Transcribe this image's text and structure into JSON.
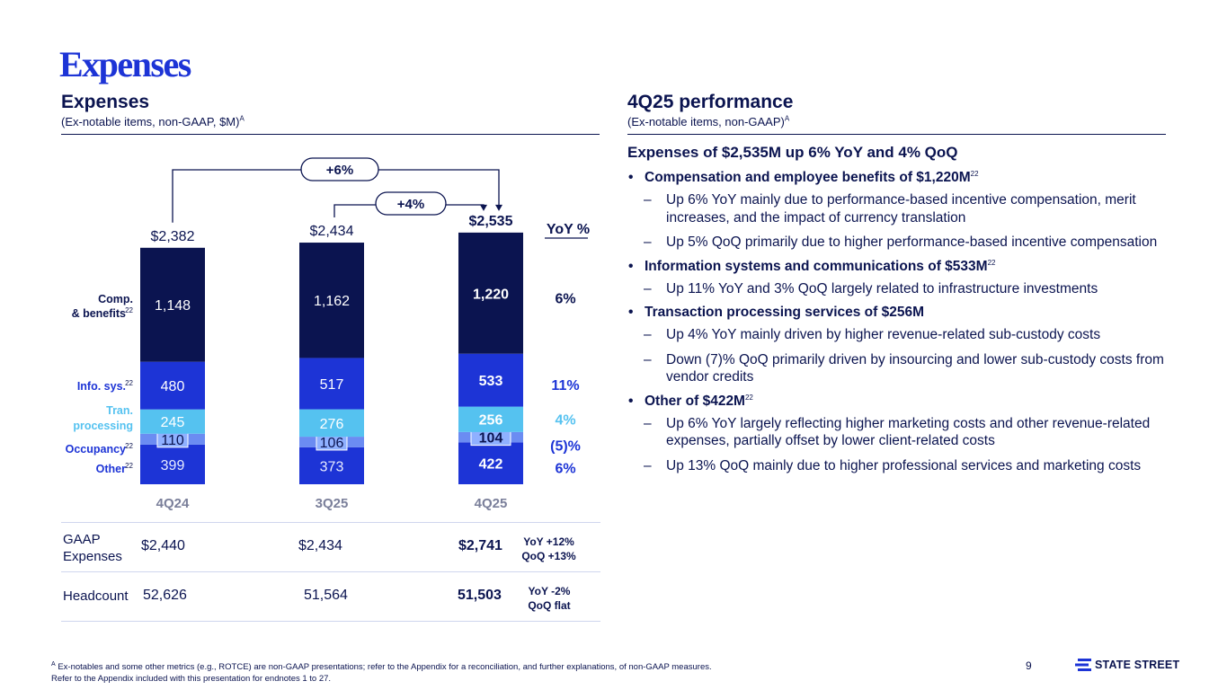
{
  "page": {
    "title": "Expenses",
    "page_number": "9"
  },
  "left_section": {
    "title": "Expenses",
    "subtitle": "(Ex-notable items, non-GAAP, $M)",
    "subtitle_sup": "A"
  },
  "right_section": {
    "title": "4Q25 performance",
    "subtitle": "(Ex-notable items, non-GAAP)",
    "subtitle_sup": "A"
  },
  "chart_data": {
    "type": "bar",
    "stacked": true,
    "categories": [
      "4Q24",
      "3Q25",
      "4Q25"
    ],
    "series": [
      {
        "name": "Other",
        "sup": "22",
        "values": [
          399,
          373,
          422
        ],
        "color": "#1d34d6"
      },
      {
        "name": "Occupancy",
        "sup": "22",
        "values": [
          110,
          106,
          104
        ],
        "color": "#6b8cf2"
      },
      {
        "name": "Tran. processing",
        "sup": "",
        "values": [
          245,
          276,
          256
        ],
        "color": "#55c2f0"
      },
      {
        "name": "Info. sys.",
        "sup": "22",
        "values": [
          480,
          517,
          533
        ],
        "color": "#1d34d6"
      },
      {
        "name": "Comp. & benefits",
        "sup": "22",
        "values": [
          1148,
          1162,
          1220
        ],
        "color": "#0b1450"
      }
    ],
    "totals": [
      "$2,382",
      "$2,434",
      "$2,535"
    ],
    "yoy_header": "YoY %",
    "yoy_changes": [
      "6%",
      "(5)%",
      "4%",
      "11%",
      "6%"
    ],
    "comparisons": [
      {
        "label": "+6%",
        "from": "4Q24",
        "to": "4Q25"
      },
      {
        "label": "+4%",
        "from": "3Q25",
        "to": "4Q25"
      }
    ],
    "legend_labels": {
      "comp_line1": "Comp.",
      "comp_line2": "& benefits",
      "comp_sup": "22",
      "info": "Info. sys.",
      "info_sup": "22",
      "tran_line1": "Tran.",
      "tran_line2": "processing",
      "occupancy": "Occupancy",
      "occupancy_sup": "22",
      "other": "Other",
      "other_sup": "22"
    },
    "ylim": [
      0,
      2600
    ]
  },
  "table": {
    "rows": [
      {
        "label_line1": "GAAP",
        "label_line2": "Expenses",
        "values": [
          "$2,440",
          "$2,434",
          "$2,741"
        ],
        "note_line1": "YoY +12%",
        "note_line2": "QoQ +13%"
      },
      {
        "label_line1": "Headcount",
        "label_line2": "",
        "values": [
          "52,626",
          "51,564",
          "51,503"
        ],
        "note_line1": "YoY -2%",
        "note_line2": "QoQ flat"
      }
    ]
  },
  "performance": {
    "headline": "Expenses of $2,535M up 6% YoY and 4% QoQ",
    "bullets": [
      {
        "text": "Compensation and employee benefits of $1,220M",
        "sup": "22",
        "subs": [
          "Up 6% YoY mainly due to performance-based incentive compensation, merit increases, and the impact of currency translation",
          "Up 5% QoQ primarily due to higher performance-based incentive compensation"
        ]
      },
      {
        "text": "Information systems and communications of $533M",
        "sup": "22",
        "subs": [
          "Up 11% YoY and 3% QoQ largely related to infrastructure investments"
        ]
      },
      {
        "text": "Transaction processing services of $256M",
        "sup": "",
        "subs": [
          "Up 4% YoY mainly driven by higher revenue-related sub-custody costs",
          "Down (7)% QoQ primarily driven by insourcing and lower sub-custody costs from vendor credits"
        ]
      },
      {
        "text": "Other of $422M",
        "sup": "22",
        "subs": [
          "Up 6% YoY largely reflecting higher marketing costs and other revenue-related expenses, partially offset by lower client-related costs",
          "Up 13% QoQ mainly due to higher professional services and marketing costs"
        ]
      }
    ]
  },
  "footer": {
    "note_marker": "A",
    "line1": "Ex-notables and some other metrics (e.g., ROTCE) are non-GAAP presentations; refer to the Appendix for a reconciliation, and further explanations, of non-GAAP measures.",
    "line2": "Refer to the Appendix included with this presentation for endnotes 1 to 27.",
    "logo_text": "STATE STREET"
  },
  "colors": {
    "navy": "#0b1450",
    "blue": "#1d34d6",
    "light_blue": "#55c2f0",
    "occupancy": "#6b8cf2"
  }
}
